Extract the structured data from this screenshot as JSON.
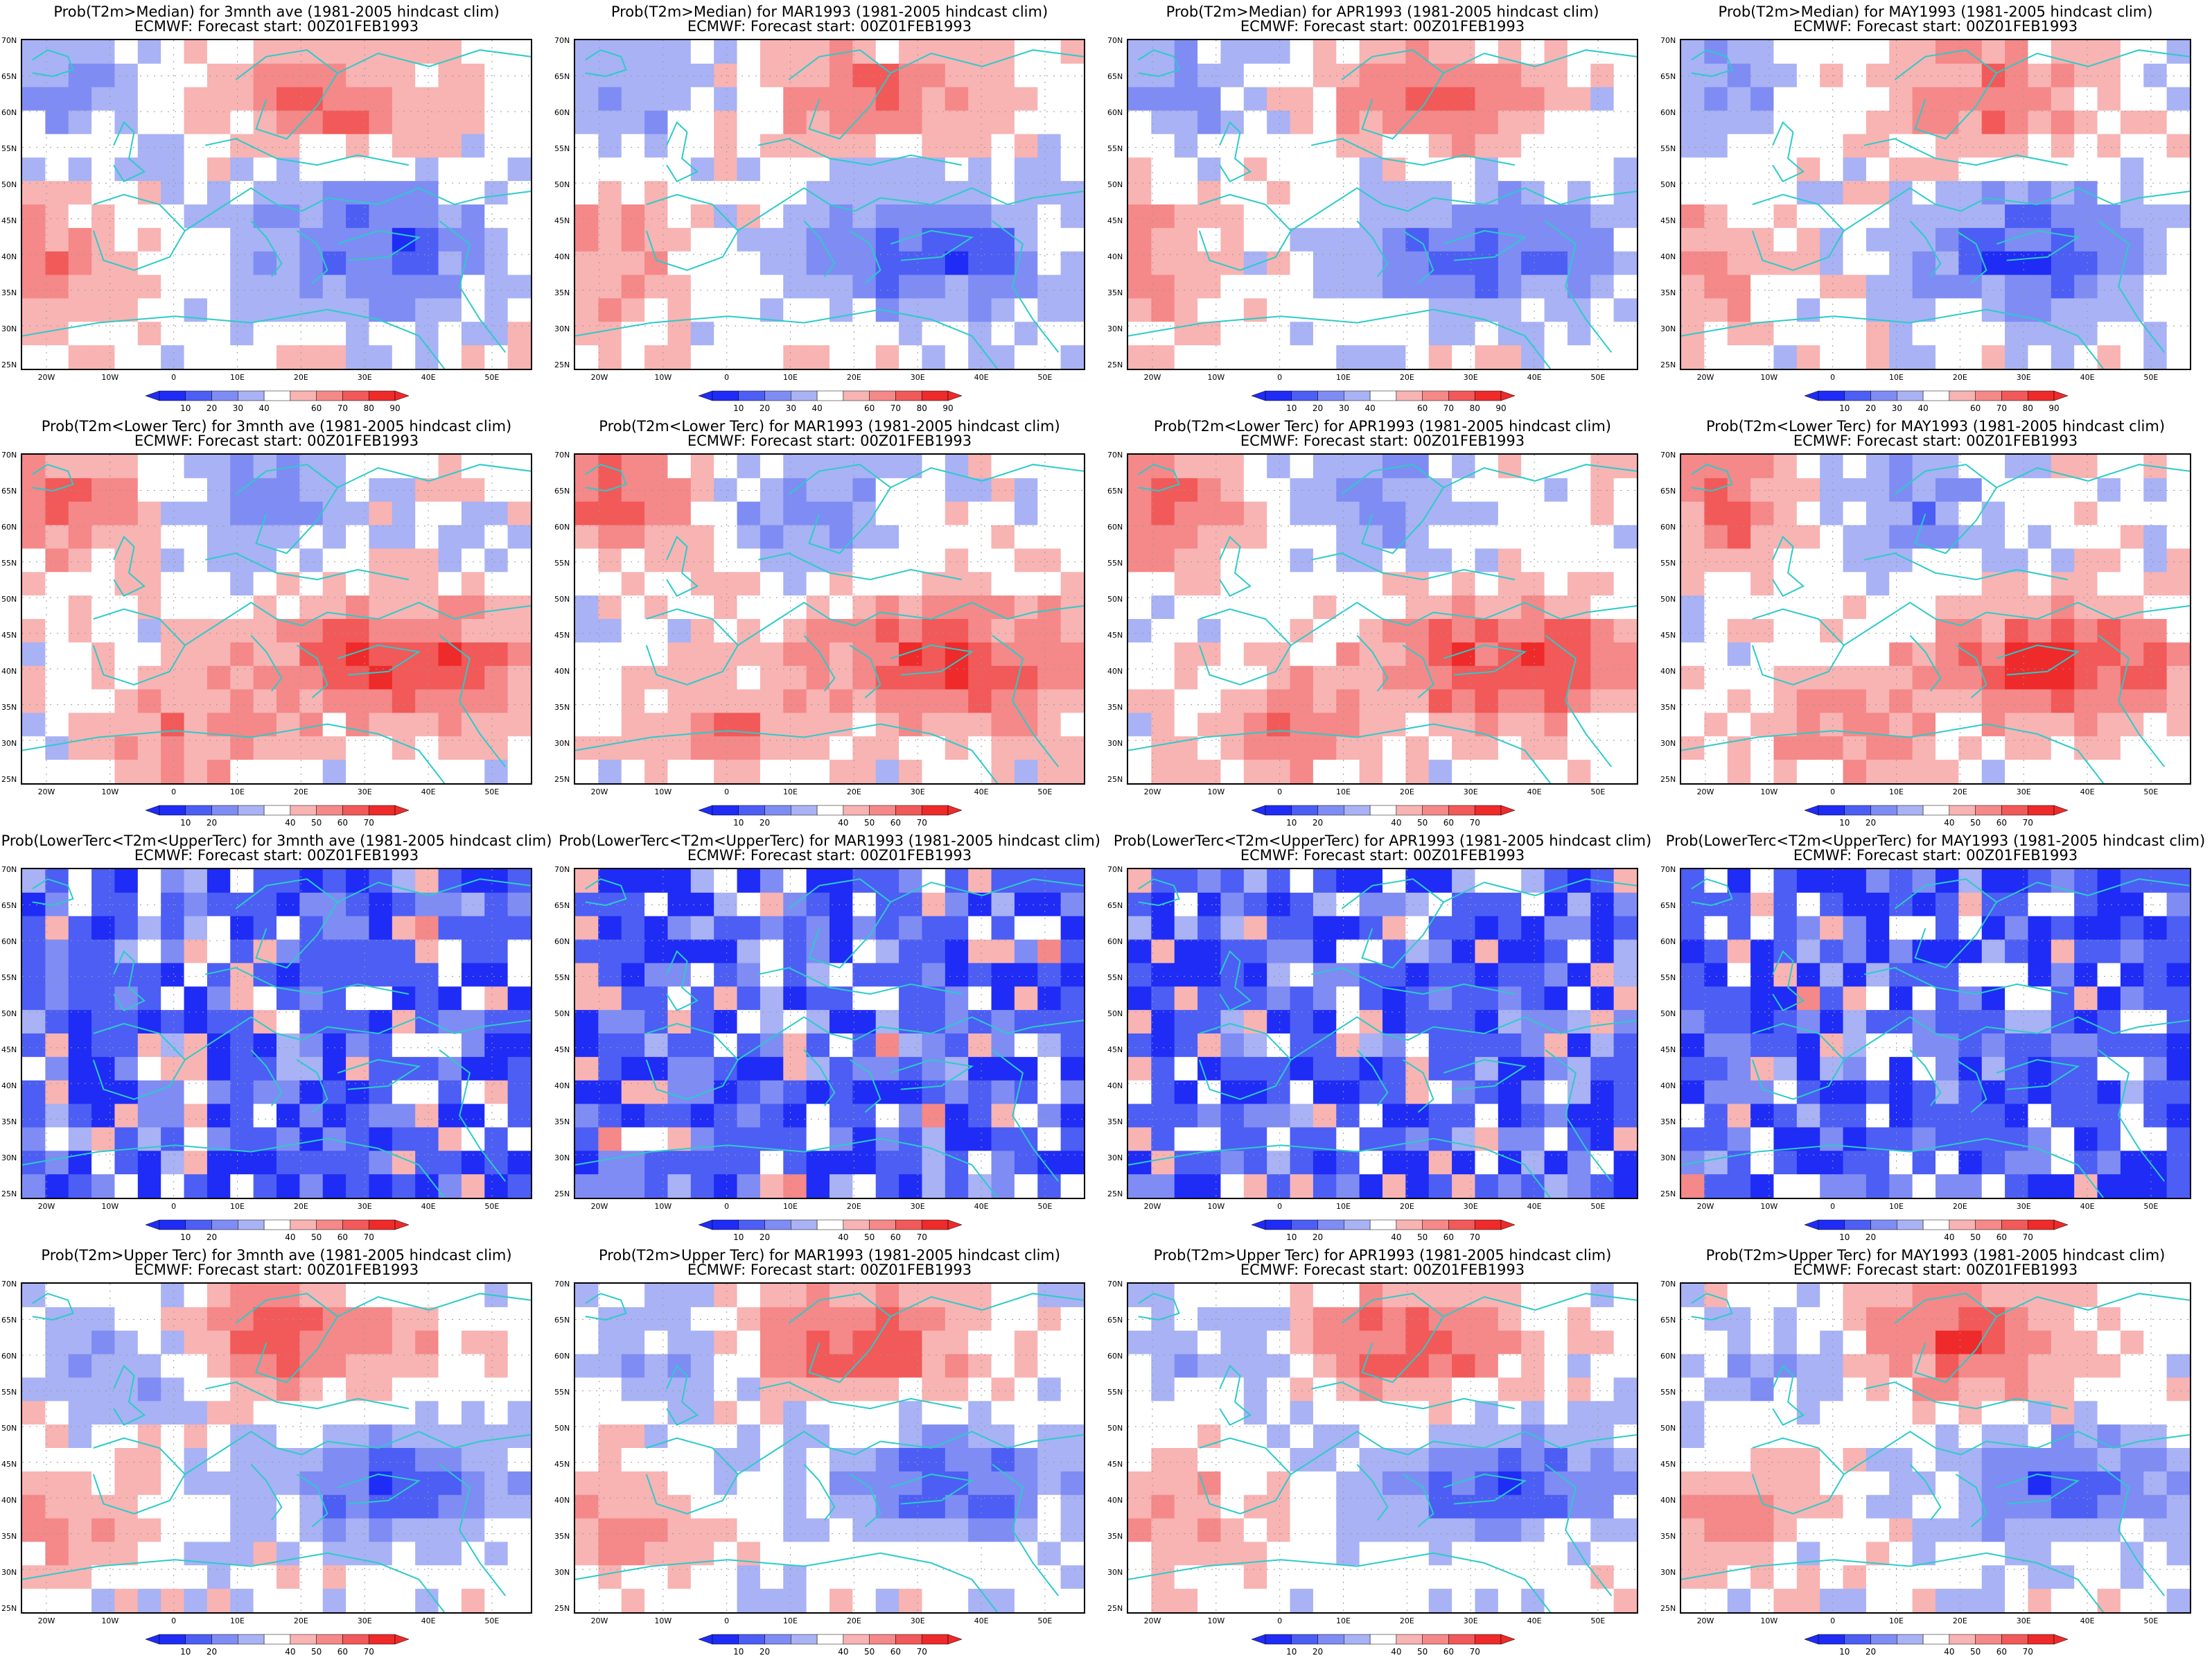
{
  "palette": {
    "blue4": "#1f2cf5",
    "blue3": "#4c5ef4",
    "blue2": "#7f8cf4",
    "blue1": "#a8b2f4",
    "white": "#ffffff",
    "red1": "#f8b3b3",
    "red2": "#f58888",
    "red3": "#f25959",
    "red4": "#ee2a2a",
    "coast": "#2ccbc9"
  },
  "lat_labels": [
    "70N",
    "65N",
    "60N",
    "55N",
    "50N",
    "45N",
    "40N",
    "35N",
    "30N",
    "25N"
  ],
  "lon_labels": [
    "20W",
    "10W",
    "0",
    "10E",
    "20E",
    "30E",
    "40E",
    "50E"
  ],
  "colorbars": {
    "median": [
      "10",
      "20",
      "30",
      "40",
      "60",
      "70",
      "80",
      "90"
    ],
    "tercile": [
      "10",
      "20",
      "40",
      "50",
      "60",
      "70"
    ]
  },
  "panels": [
    {
      "line1": "Prob(T2m>Median) for 3mnth ave (1981-2005 hindcast clim)",
      "line2": "ECMWF: Forecast start: 00Z01FEB1993",
      "cbar": "median",
      "pattern": "median"
    },
    {
      "line1": "Prob(T2m>Median) for MAR1993 (1981-2005 hindcast clim)",
      "line2": "ECMWF: Forecast start: 00Z01FEB1993",
      "cbar": "median",
      "pattern": "median"
    },
    {
      "line1": "Prob(T2m>Median) for APR1993 (1981-2005 hindcast clim)",
      "line2": "ECMWF: Forecast start: 00Z01FEB1993",
      "cbar": "median",
      "pattern": "median"
    },
    {
      "line1": "Prob(T2m>Median) for MAY1993 (1981-2005 hindcast clim)",
      "line2": "ECMWF: Forecast start: 00Z01FEB1993",
      "cbar": "median",
      "pattern": "median"
    },
    {
      "line1": "Prob(T2m<Lower Terc) for 3mnth ave (1981-2005 hindcast clim)",
      "line2": "ECMWF: Forecast start: 00Z01FEB1993",
      "cbar": "tercile",
      "pattern": "lower"
    },
    {
      "line1": "Prob(T2m<Lower Terc) for MAR1993 (1981-2005 hindcast clim)",
      "line2": "ECMWF: Forecast start: 00Z01FEB1993",
      "cbar": "tercile",
      "pattern": "lower"
    },
    {
      "line1": "Prob(T2m<Lower Terc) for APR1993 (1981-2005 hindcast clim)",
      "line2": "ECMWF: Forecast start: 00Z01FEB1993",
      "cbar": "tercile",
      "pattern": "lower"
    },
    {
      "line1": "Prob(T2m<Lower Terc) for MAY1993 (1981-2005 hindcast clim)",
      "line2": "ECMWF: Forecast start: 00Z01FEB1993",
      "cbar": "tercile",
      "pattern": "lower"
    },
    {
      "line1": "Prob(LowerTerc<T2m<UpperTerc) for 3mnth ave (1981-2005 hindcast clim)",
      "line2": "ECMWF: Forecast start: 00Z01FEB1993",
      "cbar": "tercile",
      "pattern": "middle"
    },
    {
      "line1": "Prob(LowerTerc<T2m<UpperTerc) for MAR1993 (1981-2005 hindcast clim)",
      "line2": "ECMWF: Forecast start: 00Z01FEB1993",
      "cbar": "tercile",
      "pattern": "middle"
    },
    {
      "line1": "Prob(LowerTerc<T2m<UpperTerc) for APR1993 (1981-2005 hindcast clim)",
      "line2": "ECMWF: Forecast start: 00Z01FEB1993",
      "cbar": "tercile",
      "pattern": "middle"
    },
    {
      "line1": "Prob(LowerTerc<T2m<UpperTerc) for MAY1993 (1981-2005 hindcast clim)",
      "line2": "ECMWF: Forecast start: 00Z01FEB1993",
      "cbar": "tercile",
      "pattern": "middle"
    },
    {
      "line1": "Prob(T2m>Upper Terc) for 3mnth ave (1981-2005 hindcast clim)",
      "line2": "ECMWF: Forecast start: 00Z01FEB1993",
      "cbar": "tercile",
      "pattern": "upper"
    },
    {
      "line1": "Prob(T2m>Upper Terc) for MAR1993 (1981-2005 hindcast clim)",
      "line2": "ECMWF: Forecast start: 00Z01FEB1993",
      "cbar": "tercile",
      "pattern": "upper"
    },
    {
      "line1": "Prob(T2m>Upper Terc) for APR1993 (1981-2005 hindcast clim)",
      "line2": "ECMWF: Forecast start: 00Z01FEB1993",
      "cbar": "tercile",
      "pattern": "upper"
    },
    {
      "line1": "Prob(T2m>Upper Terc) for MAY1993 (1981-2005 hindcast clim)",
      "line2": "ECMWF: Forecast start: 00Z01FEB1993",
      "cbar": "tercile",
      "pattern": "upper"
    }
  ]
}
